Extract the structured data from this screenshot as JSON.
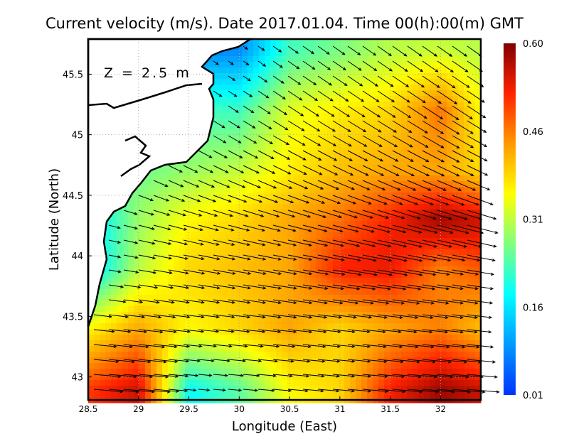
{
  "chart_data": {
    "type": "heatmap",
    "subtype": "vector-field",
    "title": "Current velocity (m/s). Date 2017.01.04. Time 00(h):00(m) GMT",
    "xlabel": "Longitude (East)",
    "ylabel": "Latitude (North)",
    "annotation": "Z = 2.5 m",
    "xlim": [
      28.5,
      32.4
    ],
    "ylim": [
      42.81,
      45.79
    ],
    "xticks": [
      "28.5",
      "29",
      "29.5",
      "30",
      "30.5",
      "31",
      "31.5",
      "32"
    ],
    "xtick_values": [
      28.5,
      29,
      29.5,
      30,
      30.5,
      31,
      31.5,
      32
    ],
    "yticks": [
      "45.5",
      "45",
      "44.5",
      "44",
      "43.5",
      "43"
    ],
    "ytick_values": [
      45.5,
      45,
      44.5,
      44,
      43.5,
      43
    ],
    "grid": true,
    "colorbar": {
      "ticks": [
        "0.60",
        "0.46",
        "0.31",
        "0.16",
        "0.01"
      ],
      "range": [
        0.01,
        0.6
      ],
      "colors": [
        "#0033ff",
        "#0099ff",
        "#00ffff",
        "#7fff7f",
        "#ffff00",
        "#ff9900",
        "#ff2200",
        "#800000"
      ]
    },
    "speed_grid": {
      "lons": [
        28.5,
        29.0,
        29.5,
        30.0,
        30.5,
        31.0,
        31.5,
        32.0,
        32.4
      ],
      "lats": [
        45.7,
        45.2,
        44.7,
        44.3,
        43.9,
        43.4,
        42.9
      ],
      "values": [
        [
          null,
          null,
          null,
          0.08,
          0.22,
          0.26,
          0.3,
          0.31,
          0.3
        ],
        [
          null,
          null,
          null,
          0.22,
          0.33,
          0.36,
          0.38,
          0.46,
          0.35
        ],
        [
          null,
          0.25,
          0.28,
          0.31,
          0.36,
          0.4,
          0.42,
          0.42,
          0.38
        ],
        [
          0.15,
          0.28,
          0.35,
          0.38,
          0.42,
          0.46,
          0.52,
          0.58,
          0.55
        ],
        [
          0.14,
          0.3,
          0.38,
          0.4,
          0.42,
          0.52,
          0.53,
          0.45,
          0.48
        ],
        [
          0.35,
          0.42,
          0.35,
          0.38,
          0.42,
          0.38,
          0.42,
          0.45,
          0.4
        ],
        [
          0.5,
          0.55,
          0.18,
          0.24,
          0.35,
          0.38,
          0.52,
          0.58,
          0.55
        ]
      ]
    },
    "direction_deg_below_east_by_lat": [
      35,
      33,
      25,
      15,
      10,
      6,
      5
    ]
  }
}
